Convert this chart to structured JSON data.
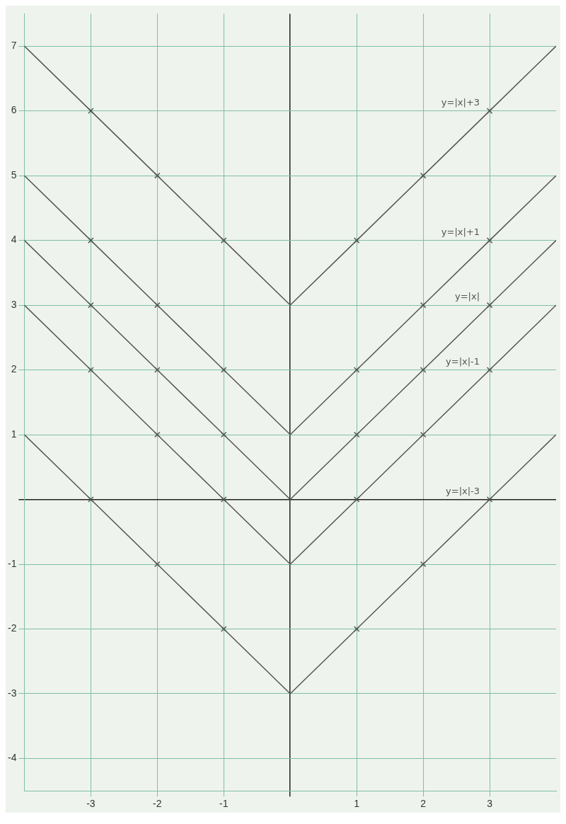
{
  "chart_data": {
    "type": "line",
    "xlim": [
      -4,
      4
    ],
    "ylim": [
      -4.5,
      7.5
    ],
    "xticks": [
      -3,
      -2,
      -1,
      {
        "value": 0,
        "label": null
      },
      1,
      2,
      3
    ],
    "yticks": [
      -4,
      -3,
      -2,
      -1,
      {
        "value": 0,
        "label": null
      },
      1,
      2,
      3,
      4,
      5,
      6,
      7
    ],
    "grid": true,
    "legend": false,
    "marker": "cross",
    "line_style": "solid",
    "series": [
      {
        "name": "y=|x|+3",
        "color": "#555555",
        "x": [
          -4,
          -3,
          -2,
          -1,
          0,
          1,
          2,
          3,
          4
        ],
        "values": [
          7,
          6,
          5,
          4,
          3,
          4,
          5,
          6,
          7
        ]
      },
      {
        "name": "y=|x|+1",
        "color": "#555555",
        "x": [
          -4,
          -3,
          -2,
          -1,
          0,
          1,
          2,
          3,
          4
        ],
        "values": [
          5,
          4,
          3,
          2,
          1,
          2,
          3,
          4,
          5
        ]
      },
      {
        "name": "y=|x|",
        "color": "#555555",
        "x": [
          -4,
          -3,
          -2,
          -1,
          0,
          1,
          2,
          3,
          4
        ],
        "values": [
          4,
          3,
          2,
          1,
          0,
          1,
          2,
          3,
          4
        ]
      },
      {
        "name": "y=|x|-1",
        "color": "#555555",
        "x": [
          -4,
          -3,
          -2,
          -1,
          0,
          1,
          2,
          3,
          4
        ],
        "values": [
          3,
          2,
          1,
          0,
          -1,
          0,
          1,
          2,
          3
        ]
      },
      {
        "name": "y=|x|-3",
        "color": "#555555",
        "x": [
          -4,
          -3,
          -2,
          -1,
          0,
          1,
          2,
          3,
          4
        ],
        "values": [
          1,
          0,
          -1,
          -2,
          -3,
          -2,
          -1,
          0,
          1
        ]
      }
    ]
  }
}
